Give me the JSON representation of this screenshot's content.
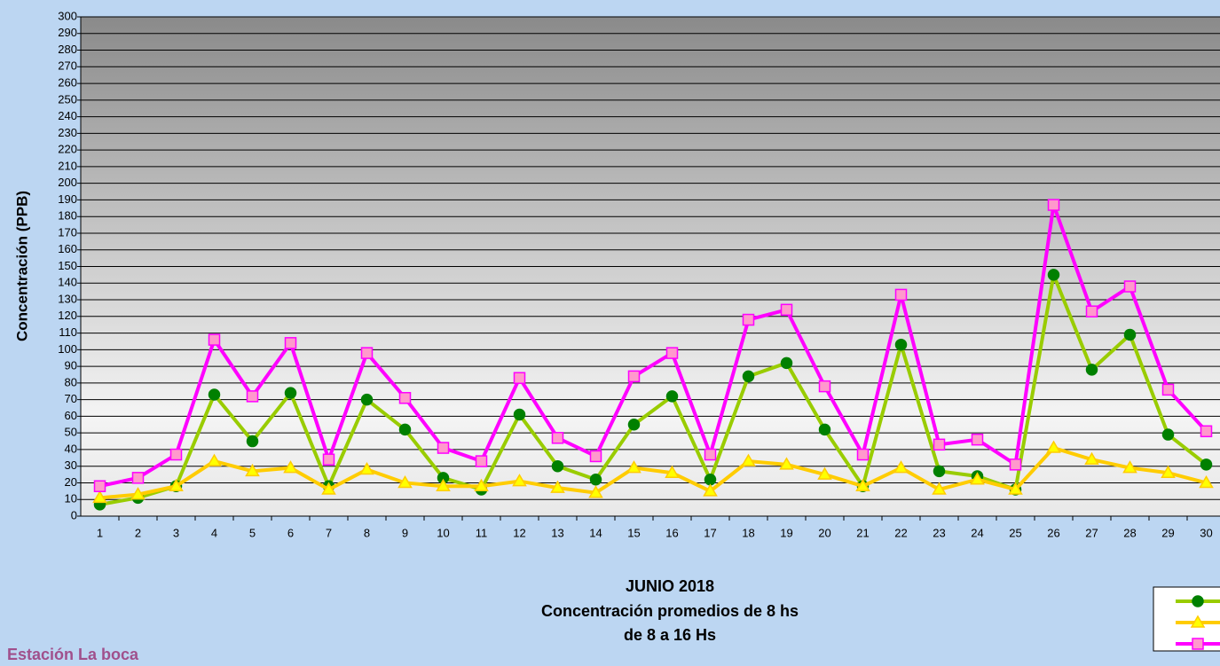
{
  "chart_data": {
    "type": "line",
    "title": [
      "JUNIO 2018",
      "Concentración promedios de 8 hs",
      "de 8 a 16 Hs"
    ],
    "ylabel": "Concentración (PPB)",
    "annotation": "Estación La boca",
    "categories": [
      "1",
      "2",
      "3",
      "4",
      "5",
      "6",
      "7",
      "8",
      "9",
      "10",
      "11",
      "12",
      "13",
      "14",
      "15",
      "16",
      "17",
      "18",
      "19",
      "20",
      "21",
      "22",
      "23",
      "24",
      "25",
      "26",
      "27",
      "28",
      "29",
      "30"
    ],
    "series": [
      {
        "color": "#99cc00",
        "marker_color": "#008000",
        "marker": "circle",
        "values": [
          7,
          11,
          18,
          73,
          45,
          74,
          18,
          70,
          52,
          23,
          16,
          61,
          30,
          22,
          55,
          72,
          22,
          84,
          92,
          52,
          18,
          103,
          27,
          24,
          16,
          145,
          88,
          109,
          49,
          31
        ]
      },
      {
        "color": "#ffcc00",
        "marker_color": "#ffff00",
        "marker": "triangle",
        "values": [
          11,
          13,
          18,
          33,
          27,
          29,
          16,
          28,
          20,
          18,
          18,
          21,
          17,
          14,
          29,
          26,
          15,
          33,
          31,
          25,
          18,
          29,
          16,
          22,
          16,
          41,
          34,
          29,
          26,
          20
        ]
      },
      {
        "color": "#ff00ff",
        "marker_color": "#ff99cc",
        "marker": "square",
        "values": [
          18,
          23,
          37,
          106,
          72,
          104,
          34,
          98,
          71,
          41,
          33,
          83,
          47,
          36,
          84,
          98,
          37,
          118,
          124,
          78,
          37,
          133,
          43,
          46,
          31,
          187,
          123,
          138,
          76,
          51
        ]
      }
    ],
    "ylim": [
      0,
      300
    ],
    "yticks": [
      0,
      10,
      20,
      30,
      40,
      50,
      60,
      70,
      80,
      90,
      100,
      110,
      120,
      130,
      140,
      150,
      160,
      170,
      180,
      190,
      200,
      210,
      220,
      230,
      240,
      250,
      260,
      270,
      280,
      290,
      300
    ],
    "grid": true
  }
}
